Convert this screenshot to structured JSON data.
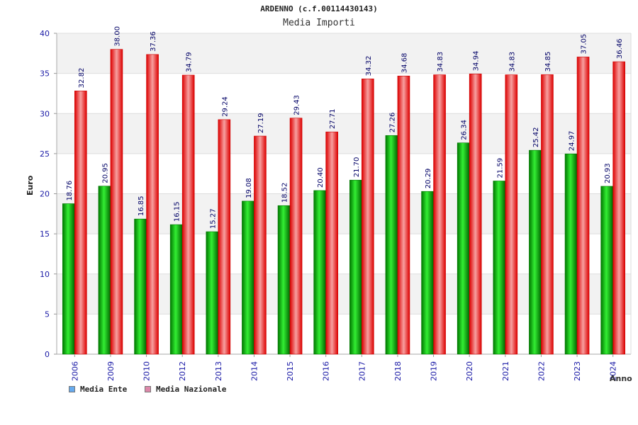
{
  "chart_data": {
    "type": "bar",
    "title": "ARDENNO (c.f.00114430143)",
    "subtitle": "Media Importi",
    "xlabel": "Anno",
    "ylabel": "Euro",
    "ylim": [
      0,
      40
    ],
    "yticks": [
      "0",
      "5",
      "10",
      "15",
      "20",
      "25",
      "30",
      "35",
      "40"
    ],
    "categories": [
      "2006",
      "2009",
      "2010",
      "2012",
      "2013",
      "2014",
      "2015",
      "2016",
      "2017",
      "2018",
      "2019",
      "2020",
      "2021",
      "2022",
      "2023",
      "2024"
    ],
    "series": [
      {
        "name": "Media Ente",
        "color": "#00cc00",
        "legend_color": "#66aaee",
        "values": [
          18.76,
          20.95,
          16.85,
          16.15,
          15.27,
          19.08,
          18.52,
          20.4,
          21.7,
          27.26,
          20.29,
          26.34,
          21.59,
          25.42,
          24.97,
          20.93
        ],
        "labels": [
          "18.76",
          "20.95",
          "16.85",
          "16.15",
          "15.27",
          "19.08",
          "18.52",
          "20.40",
          "21.70",
          "27.26",
          "20.29",
          "26.34",
          "21.59",
          "25.42",
          "24.97",
          "20.93"
        ]
      },
      {
        "name": "Media Nazionale",
        "color": "#ee1111",
        "legend_color": "#dd88aa",
        "values": [
          32.82,
          38.0,
          37.36,
          34.79,
          29.24,
          27.19,
          29.43,
          27.71,
          34.32,
          34.68,
          34.83,
          34.94,
          34.83,
          34.85,
          37.05,
          36.46
        ],
        "labels": [
          "32.82",
          "38.00",
          "37.36",
          "34.79",
          "29.24",
          "27.19",
          "29.43",
          "27.71",
          "34.32",
          "34.68",
          "34.83",
          "34.94",
          "34.83",
          "34.85",
          "37.05",
          "36.46"
        ]
      }
    ],
    "grid": true,
    "legend": "bottom-left"
  }
}
